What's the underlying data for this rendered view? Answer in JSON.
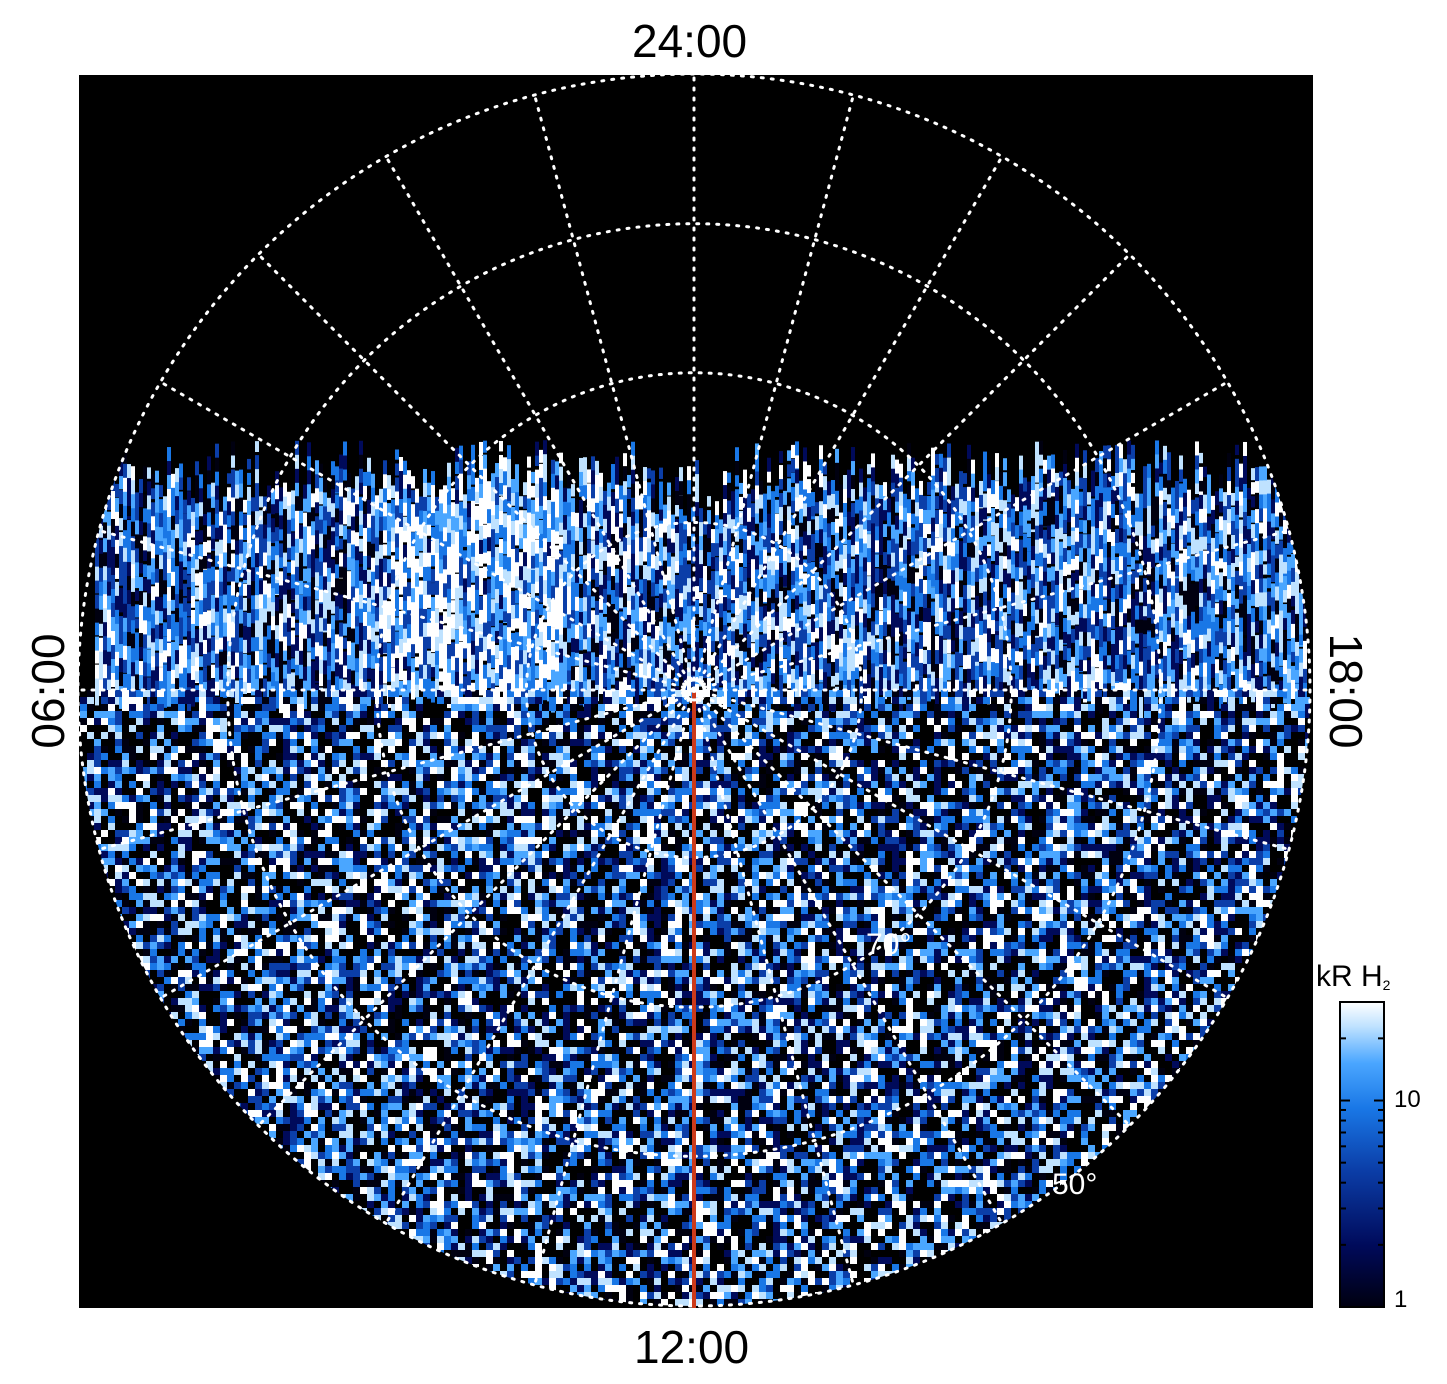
{
  "figure": {
    "local_time_labels": {
      "top": "24:00",
      "bottom": "12:00",
      "left": "06:00",
      "right": "18:00"
    },
    "latitude_labels": [
      "70°",
      "50°"
    ],
    "colorbar": {
      "title_main": "kR H",
      "title_subscript": "2",
      "tick_labels": [
        "10",
        "1"
      ],
      "scale": "log",
      "range_kR": [
        1,
        30
      ],
      "colors": [
        "#000010",
        "#000a5a",
        "#0b3ea8",
        "#1977e6",
        "#4aa6ff",
        "#bfe2ff",
        "#ffffff"
      ]
    },
    "background_color": "#000000",
    "grid_color": "#ffffff",
    "meridian_line_color": "#cc3a1a",
    "projection": "polar, pole at center, 24:00 at top, 12:00 at bottom",
    "data_coverage": "emission shown from dawn-to-dusk band down to dayside edge; nightside polar region empty"
  }
}
